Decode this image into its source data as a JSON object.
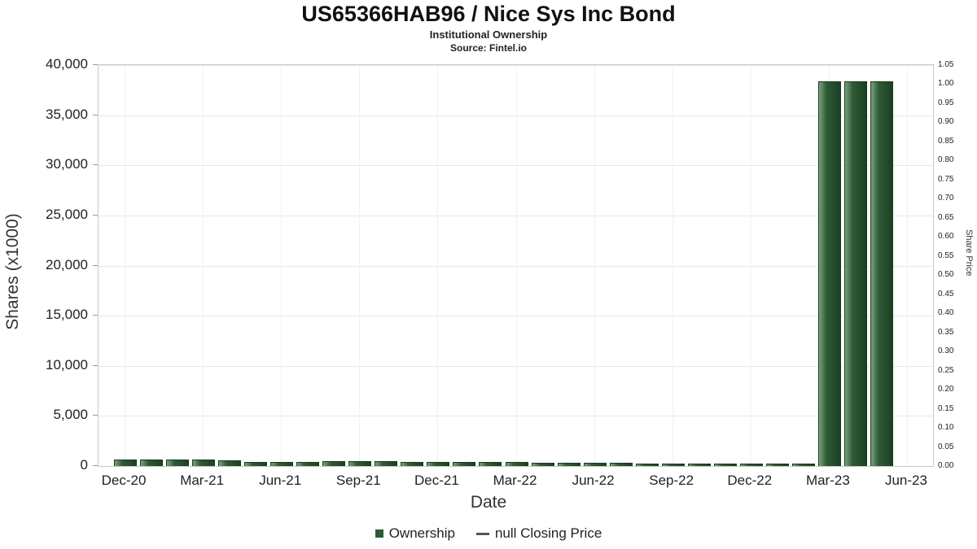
{
  "header": {
    "title": "US65366HAB96 / Nice Sys Inc Bond",
    "subtitle": "Institutional Ownership",
    "source": "Source: Fintel.io"
  },
  "chart_data": {
    "type": "bar",
    "title": "US65366HAB96 / Nice Sys Inc Bond",
    "subtitle": "Institutional Ownership",
    "source": "Source: Fintel.io",
    "xlabel": "Date",
    "ylabel_left": "Shares (x1000)",
    "ylabel_right": "Share Price",
    "categories": [
      "Dec-20",
      "Jan-21",
      "Feb-21",
      "Mar-21",
      "Apr-21",
      "May-21",
      "Jun-21",
      "Jul-21",
      "Aug-21",
      "Sep-21",
      "Oct-21",
      "Nov-21",
      "Dec-21",
      "Jan-22",
      "Feb-22",
      "Mar-22",
      "Apr-22",
      "May-22",
      "Jun-22",
      "Jul-22",
      "Aug-22",
      "Sep-22",
      "Oct-22",
      "Nov-22",
      "Dec-22",
      "Jan-23",
      "Feb-23",
      "Mar-23",
      "Apr-23",
      "May-23"
    ],
    "series": [
      {
        "name": "Ownership",
        "values": [
          600,
          600,
          550,
          550,
          500,
          350,
          350,
          350,
          400,
          400,
          400,
          350,
          300,
          300,
          300,
          300,
          250,
          250,
          250,
          250,
          200,
          200,
          200,
          200,
          200,
          200,
          200,
          38300,
          38300,
          38300
        ]
      }
    ],
    "x_tick_labels": [
      "Dec-20",
      "Mar-21",
      "Jun-21",
      "Sep-21",
      "Dec-21",
      "Mar-22",
      "Jun-22",
      "Sep-22",
      "Dec-22",
      "Mar-23",
      "Jun-23"
    ],
    "x_tick_indices": [
      0,
      3,
      6,
      9,
      12,
      15,
      18,
      21,
      24,
      27,
      30
    ],
    "ylim_left": [
      0,
      40000
    ],
    "y_ticks_left": [
      0,
      5000,
      10000,
      15000,
      20000,
      25000,
      30000,
      35000,
      40000
    ],
    "ylim_right": [
      0,
      1.05
    ],
    "right_tick_step": 0.05,
    "grid": true,
    "legend": [
      "Ownership",
      "null Closing Price"
    ],
    "legend_position": "bottom",
    "bar_color": "#2d5b35"
  }
}
